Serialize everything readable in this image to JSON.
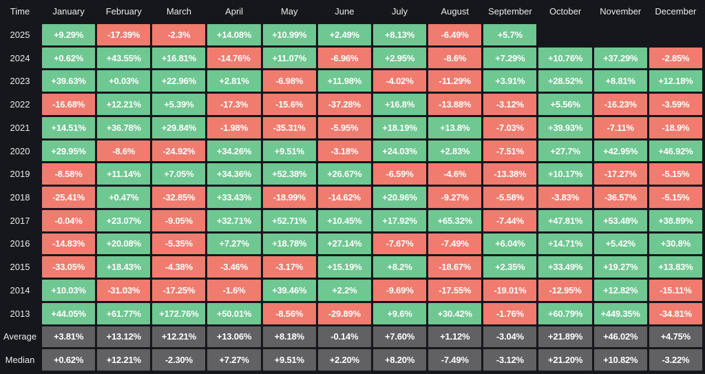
{
  "page": {
    "background": "#15171c"
  },
  "table": {
    "corner_label": "Time",
    "months": [
      "January",
      "February",
      "March",
      "April",
      "May",
      "June",
      "July",
      "August",
      "September",
      "October",
      "November",
      "December"
    ],
    "colors": {
      "positive": "#6fc791",
      "negative": "#ef7c6f",
      "summary": "#616163",
      "cell_text": "#ffffff",
      "header_text": "#e9ebee",
      "background": "#15171c"
    },
    "rows": [
      {
        "label": "2025",
        "type": "year",
        "values": [
          "+9.29%",
          "-17.39%",
          "-2.3%",
          "+14.08%",
          "+10.99%",
          "+2.49%",
          "+8.13%",
          "-6.49%",
          "+5.7%",
          "",
          "",
          ""
        ]
      },
      {
        "label": "2024",
        "type": "year",
        "values": [
          "+0.62%",
          "+43.55%",
          "+16.81%",
          "-14.76%",
          "+11.07%",
          "-6.96%",
          "+2.95%",
          "-8.6%",
          "+7.29%",
          "+10.76%",
          "+37.29%",
          "-2.85%"
        ]
      },
      {
        "label": "2023",
        "type": "year",
        "values": [
          "+39.63%",
          "+0.03%",
          "+22.96%",
          "+2.81%",
          "-6.98%",
          "+11.98%",
          "-4.02%",
          "-11.29%",
          "+3.91%",
          "+28.52%",
          "+8.81%",
          "+12.18%"
        ]
      },
      {
        "label": "2022",
        "type": "year",
        "values": [
          "-16.68%",
          "+12.21%",
          "+5.39%",
          "-17.3%",
          "-15.6%",
          "-37.28%",
          "+16.8%",
          "-13.88%",
          "-3.12%",
          "+5.56%",
          "-16.23%",
          "-3.59%"
        ]
      },
      {
        "label": "2021",
        "type": "year",
        "values": [
          "+14.51%",
          "+36.78%",
          "+29.84%",
          "-1.98%",
          "-35.31%",
          "-5.95%",
          "+18.19%",
          "+13.8%",
          "-7.03%",
          "+39.93%",
          "-7.11%",
          "-18.9%"
        ]
      },
      {
        "label": "2020",
        "type": "year",
        "values": [
          "+29.95%",
          "-8.6%",
          "-24.92%",
          "+34.26%",
          "+9.51%",
          "-3.18%",
          "+24.03%",
          "+2.83%",
          "-7.51%",
          "+27.7%",
          "+42.95%",
          "+46.92%"
        ]
      },
      {
        "label": "2019",
        "type": "year",
        "values": [
          "-8.58%",
          "+11.14%",
          "+7.05%",
          "+34.36%",
          "+52.38%",
          "+26.67%",
          "-6.59%",
          "-4.6%",
          "-13.38%",
          "+10.17%",
          "-17.27%",
          "-5.15%"
        ]
      },
      {
        "label": "2018",
        "type": "year",
        "values": [
          "-25.41%",
          "+0.47%",
          "-32.85%",
          "+33.43%",
          "-18.99%",
          "-14.62%",
          "+20.96%",
          "-9.27%",
          "-5.58%",
          "-3.83%",
          "-36.57%",
          "-5.15%"
        ]
      },
      {
        "label": "2017",
        "type": "year",
        "values": [
          "-0.04%",
          "+23.07%",
          "-9.05%",
          "+32.71%",
          "+52.71%",
          "+10.45%",
          "+17.92%",
          "+65.32%",
          "-7.44%",
          "+47.81%",
          "+53.48%",
          "+38.89%"
        ]
      },
      {
        "label": "2016",
        "type": "year",
        "values": [
          "-14.83%",
          "+20.08%",
          "-5.35%",
          "+7.27%",
          "+18.78%",
          "+27.14%",
          "-7.67%",
          "-7.49%",
          "+6.04%",
          "+14.71%",
          "+5.42%",
          "+30.8%"
        ]
      },
      {
        "label": "2015",
        "type": "year",
        "values": [
          "-33.05%",
          "+18.43%",
          "-4.38%",
          "-3.46%",
          "-3.17%",
          "+15.19%",
          "+8.2%",
          "-18.67%",
          "+2.35%",
          "+33.49%",
          "+19.27%",
          "+13.83%"
        ]
      },
      {
        "label": "2014",
        "type": "year",
        "values": [
          "+10.03%",
          "-31.03%",
          "-17.25%",
          "-1.6%",
          "+39.46%",
          "+2.2%",
          "-9.69%",
          "-17.55%",
          "-19.01%",
          "-12.95%",
          "+12.82%",
          "-15.11%"
        ]
      },
      {
        "label": "2013",
        "type": "year",
        "values": [
          "+44.05%",
          "+61.77%",
          "+172.76%",
          "+50.01%",
          "-8.56%",
          "-29.89%",
          "+9.6%",
          "+30.42%",
          "-1.76%",
          "+60.79%",
          "+449.35%",
          "-34.81%"
        ]
      },
      {
        "label": "Average",
        "type": "summary",
        "values": [
          "+3.81%",
          "+13.12%",
          "+12.21%",
          "+13.06%",
          "+8.18%",
          "-0.14%",
          "+7.60%",
          "+1.12%",
          "-3.04%",
          "+21.89%",
          "+46.02%",
          "+4.75%"
        ]
      },
      {
        "label": "Median",
        "type": "summary",
        "values": [
          "+0.62%",
          "+12.21%",
          "-2.30%",
          "+7.27%",
          "+9.51%",
          "+2.20%",
          "+8.20%",
          "-7.49%",
          "-3.12%",
          "+21.20%",
          "+10.82%",
          "-3.22%"
        ]
      }
    ]
  },
  "chart_data": {
    "type": "heatmap",
    "x_categories": [
      "January",
      "February",
      "March",
      "April",
      "May",
      "June",
      "July",
      "August",
      "September",
      "October",
      "November",
      "December"
    ],
    "y_categories": [
      "2025",
      "2024",
      "2023",
      "2022",
      "2021",
      "2020",
      "2019",
      "2018",
      "2017",
      "2016",
      "2015",
      "2014",
      "2013",
      "Average",
      "Median"
    ],
    "value_unit": "%",
    "series": [
      {
        "name": "2025",
        "values": [
          9.29,
          -17.39,
          -2.3,
          14.08,
          10.99,
          2.49,
          8.13,
          -6.49,
          5.7,
          null,
          null,
          null
        ]
      },
      {
        "name": "2024",
        "values": [
          0.62,
          43.55,
          16.81,
          -14.76,
          11.07,
          -6.96,
          2.95,
          -8.6,
          7.29,
          10.76,
          37.29,
          -2.85
        ]
      },
      {
        "name": "2023",
        "values": [
          39.63,
          0.03,
          22.96,
          2.81,
          -6.98,
          11.98,
          -4.02,
          -11.29,
          3.91,
          28.52,
          8.81,
          12.18
        ]
      },
      {
        "name": "2022",
        "values": [
          -16.68,
          12.21,
          5.39,
          -17.3,
          -15.6,
          -37.28,
          16.8,
          -13.88,
          -3.12,
          5.56,
          -16.23,
          -3.59
        ]
      },
      {
        "name": "2021",
        "values": [
          14.51,
          36.78,
          29.84,
          -1.98,
          -35.31,
          -5.95,
          18.19,
          13.8,
          -7.03,
          39.93,
          -7.11,
          -18.9
        ]
      },
      {
        "name": "2020",
        "values": [
          29.95,
          -8.6,
          -24.92,
          34.26,
          9.51,
          -3.18,
          24.03,
          2.83,
          -7.51,
          27.7,
          42.95,
          46.92
        ]
      },
      {
        "name": "2019",
        "values": [
          -8.58,
          11.14,
          7.05,
          34.36,
          52.38,
          26.67,
          -6.59,
          -4.6,
          -13.38,
          10.17,
          -17.27,
          -5.15
        ]
      },
      {
        "name": "2018",
        "values": [
          -25.41,
          0.47,
          -32.85,
          33.43,
          -18.99,
          -14.62,
          20.96,
          -9.27,
          -5.58,
          -3.83,
          -36.57,
          -5.15
        ]
      },
      {
        "name": "2017",
        "values": [
          -0.04,
          23.07,
          -9.05,
          32.71,
          52.71,
          10.45,
          17.92,
          65.32,
          -7.44,
          47.81,
          53.48,
          38.89
        ]
      },
      {
        "name": "2016",
        "values": [
          -14.83,
          20.08,
          -5.35,
          7.27,
          18.78,
          27.14,
          -7.67,
          -7.49,
          6.04,
          14.71,
          5.42,
          30.8
        ]
      },
      {
        "name": "2015",
        "values": [
          -33.05,
          18.43,
          -4.38,
          -3.46,
          -3.17,
          15.19,
          8.2,
          -18.67,
          2.35,
          33.49,
          19.27,
          13.83
        ]
      },
      {
        "name": "2014",
        "values": [
          10.03,
          -31.03,
          -17.25,
          -1.6,
          39.46,
          2.2,
          -9.69,
          -17.55,
          -19.01,
          -12.95,
          12.82,
          -15.11
        ]
      },
      {
        "name": "2013",
        "values": [
          44.05,
          61.77,
          172.76,
          50.01,
          -8.56,
          -29.89,
          9.6,
          30.42,
          -1.76,
          60.79,
          449.35,
          -34.81
        ]
      },
      {
        "name": "Average",
        "values": [
          3.81,
          13.12,
          12.21,
          13.06,
          8.18,
          -0.14,
          7.6,
          1.12,
          -3.04,
          21.89,
          46.02,
          4.75
        ]
      },
      {
        "name": "Median",
        "values": [
          0.62,
          12.21,
          -2.3,
          7.27,
          9.51,
          2.2,
          8.2,
          -7.49,
          -3.12,
          21.2,
          10.82,
          -3.22
        ]
      }
    ],
    "legend": "none",
    "grid": "off",
    "color_encoding": {
      "positive": "#6fc791",
      "negative": "#ef7c6f",
      "summary_row": "#616163"
    }
  }
}
